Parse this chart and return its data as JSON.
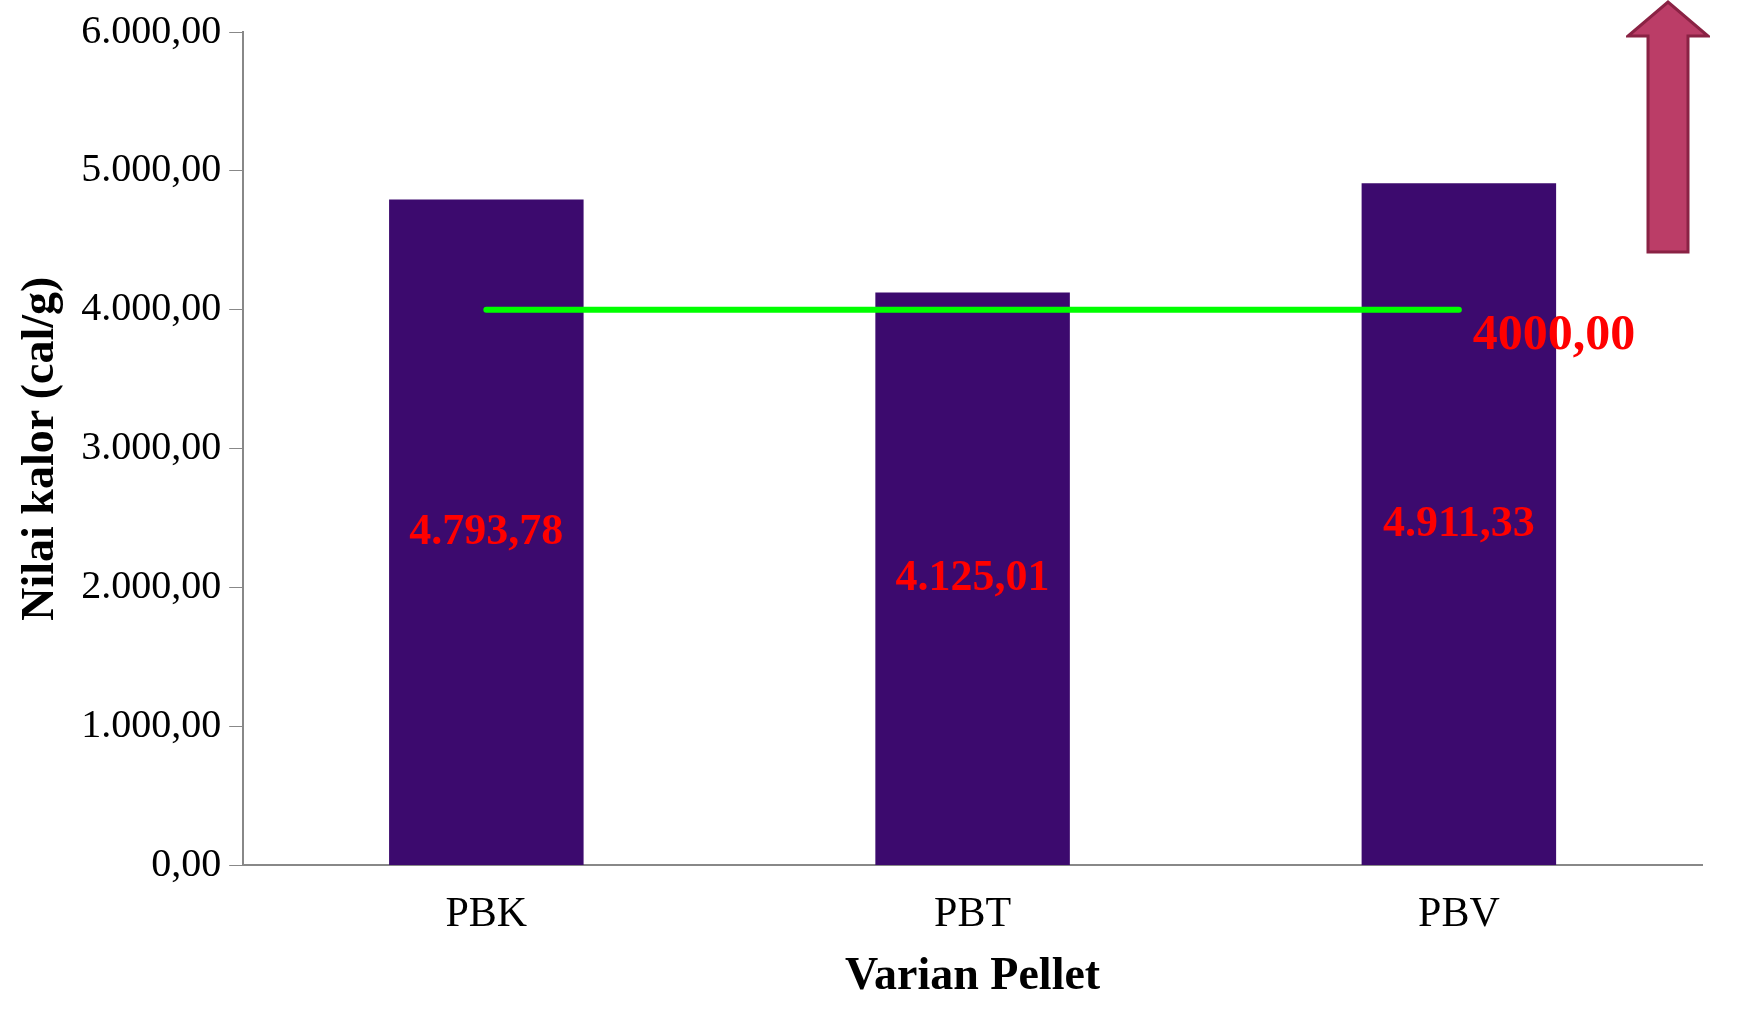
{
  "chart_data": {
    "type": "bar",
    "xlabel": "Varian Pellet",
    "ylabel": "Nilai kalor (cal/g)",
    "categories": [
      "PBK",
      "PBT",
      "PBV"
    ],
    "values": [
      4793.78,
      4125.01,
      4911.33
    ],
    "value_labels": [
      "4.793,78",
      "4.125,01",
      "4.911,33"
    ],
    "color": "#3c0a6e",
    "ylim": [
      0,
      6000
    ],
    "yticks": [
      {
        "value": 0,
        "label": "0,00"
      },
      {
        "value": 1000,
        "label": "1.000,00"
      },
      {
        "value": 2000,
        "label": "2.000,00"
      },
      {
        "value": 3000,
        "label": "3.000,00"
      },
      {
        "value": 4000,
        "label": "4.000,00"
      },
      {
        "value": 5000,
        "label": "5.000,00"
      },
      {
        "value": 6000,
        "label": "6.000,00"
      }
    ],
    "ref_lines": [
      {
        "axis": "y",
        "value": 4000,
        "label": "4000,00",
        "color": "#00ff00"
      }
    ],
    "grid": false,
    "legend": false
  }
}
